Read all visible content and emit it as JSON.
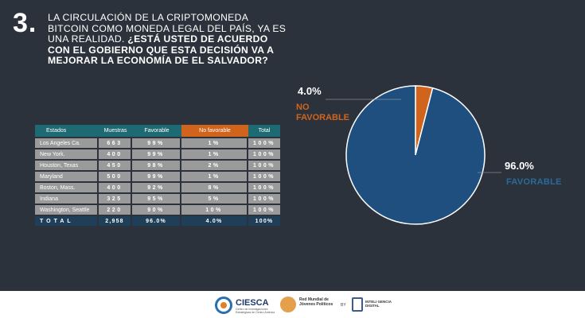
{
  "question": {
    "number": "3.",
    "text_plain": "LA CIRCULACIÓN DE LA CRIPTOMONEDA BITCOIN COMO MONEDA LEGAL DEL PAÍS, YA ES UNA REALIDAD. ",
    "text_bold": "¿ESTÁ USTED DE ACUERDO CON EL GOBIERNO QUE ESTA DECISIÓN VA A MEJORAR LA ECONOMÍA DE EL SALVADOR?"
  },
  "table": {
    "headers": [
      "Estados",
      "Muestras",
      "Favorable",
      "No favorable",
      "Total"
    ],
    "rows": [
      {
        "estado": "Los Angeles Ca.",
        "muestras": "663",
        "favorable": "99%",
        "no_favorable": "1%",
        "total": "100%"
      },
      {
        "estado": "New York.",
        "muestras": "400",
        "favorable": "99%",
        "no_favorable": "1%",
        "total": "100%"
      },
      {
        "estado": "Houston, Texas",
        "muestras": "450",
        "favorable": "98%",
        "no_favorable": "2%",
        "total": "100%"
      },
      {
        "estado": "Maryland",
        "muestras": "500",
        "favorable": "99%",
        "no_favorable": "1%",
        "total": "100%"
      },
      {
        "estado": "Boston, Mass.",
        "muestras": "400",
        "favorable": "92%",
        "no_favorable": "8%",
        "total": "100%"
      },
      {
        "estado": "Indiana",
        "muestras": "325",
        "favorable": "95%",
        "no_favorable": "5%",
        "total": "100%"
      },
      {
        "estado": "Washington, Seattle",
        "muestras": "220",
        "favorable": "90%",
        "no_favorable": "10%",
        "total": "100%"
      }
    ],
    "total_row": {
      "estado": "TOTAL",
      "muestras": "2,958",
      "favorable": "96.0%",
      "no_favorable": "4.0%",
      "total": "100%"
    }
  },
  "chart_data": {
    "type": "pie",
    "title": "",
    "slices": [
      {
        "label": "FAVORABLE",
        "value": 96.0,
        "display": "96.0%",
        "color": "#1f4f7e"
      },
      {
        "label": "NO FAVORABLE",
        "value": 4.0,
        "display": "4.0%",
        "color": "#d0641d"
      }
    ]
  },
  "footer": {
    "ciesca_name": "CIESCA",
    "ciesca_sub": "Centro de Investigaciones Estratégicas de Centro América",
    "red_name": "Red Mundial de Jóvenes Políticos",
    "by": "BY",
    "inteli_name": "INTELI GENCIA DIGITAL"
  },
  "colors": {
    "background": "#2c323b",
    "header_teal": "#1d6a73",
    "header_orange": "#d0641d",
    "row_gray": "#9a9a9a",
    "total_row": "#1f3f58"
  }
}
